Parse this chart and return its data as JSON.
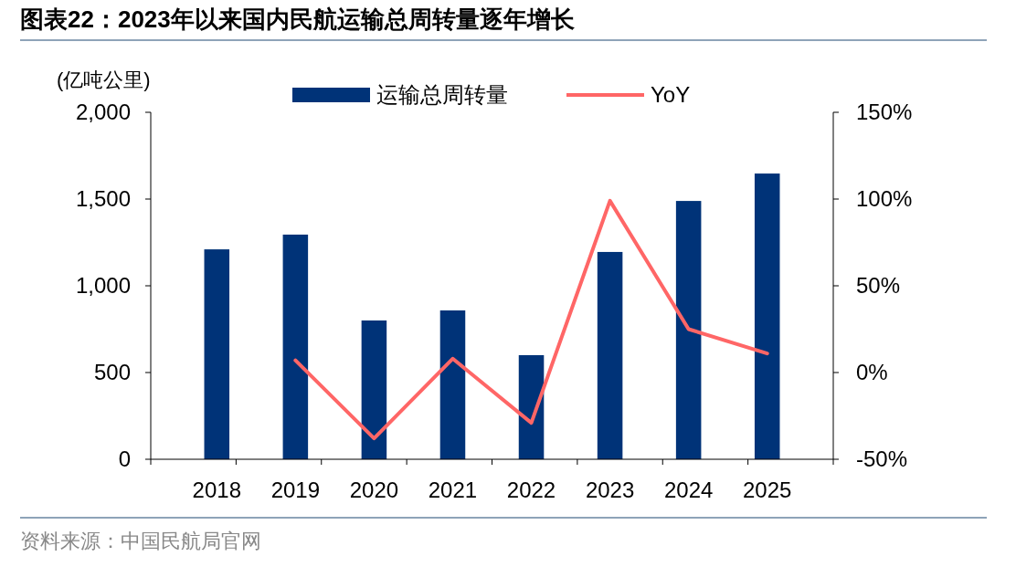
{
  "chart_data": {
    "type": "bar",
    "title": "图表22：2023年以来国内民航运输总周转量逐年增长",
    "ylabel": "(亿吨公里)",
    "categories": [
      "2018",
      "2019",
      "2020",
      "2021",
      "2022",
      "2023",
      "2024",
      "2025"
    ],
    "series": [
      {
        "name": "运输总周转量",
        "color": "#003378",
        "values": [
          1210,
          1295,
          800,
          858,
          600,
          1195,
          1489,
          1647
        ]
      },
      {
        "name": "YoY",
        "type": "line",
        "axis": "y2",
        "color": "#ff6666",
        "values": [
          null,
          7,
          -38,
          8,
          -29,
          99,
          25,
          11
        ]
      }
    ],
    "ylim": [
      0,
      2000
    ],
    "yticks": [
      {
        "value": 0,
        "label": "0"
      },
      {
        "value": 500,
        "label": "500"
      },
      {
        "value": 1000,
        "label": "1,000"
      },
      {
        "value": 1500,
        "label": "1,500"
      },
      {
        "value": 2000,
        "label": "2,000"
      }
    ],
    "y2lim": [
      -50,
      150
    ],
    "y2ticks": [
      {
        "value": -50,
        "label": "-50%"
      },
      {
        "value": 0,
        "label": "0%"
      },
      {
        "value": 50,
        "label": "50%"
      },
      {
        "value": 100,
        "label": "100%"
      },
      {
        "value": 150,
        "label": "150%"
      }
    ],
    "legend": "top",
    "grid": false,
    "marker": "none",
    "line_style": "solid",
    "annotations": [
      "资料来源：中国民航局官网"
    ]
  }
}
